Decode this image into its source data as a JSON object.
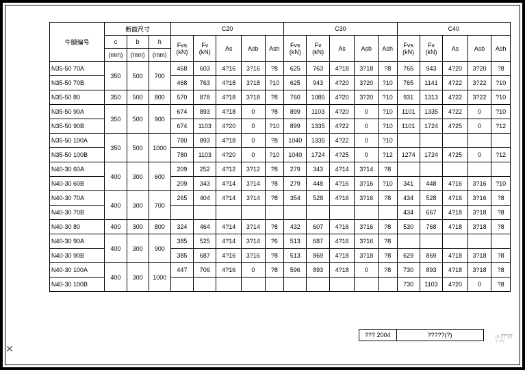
{
  "colors": {
    "border": "#000000",
    "bg": "#ffffff",
    "outer": "#c8c8c8"
  },
  "group_headers": {
    "dim": "断面尺寸",
    "c20": "C20",
    "c30": "C30",
    "c40": "C40"
  },
  "headers": {
    "id": "牛腿编号",
    "c": "c",
    "b": "b",
    "h": "h",
    "fvs": "Fvs",
    "fv": "Fv",
    "as": "As",
    "asb": "Asb",
    "ash": "Ash"
  },
  "units": {
    "mm": "(mm)",
    "kn": "(kN)"
  },
  "dim_groups": [
    {
      "span": 2,
      "c": "350",
      "b": "500",
      "h": "700"
    },
    {
      "span": 1,
      "c": "350",
      "b": "500",
      "h": "800"
    },
    {
      "span": 2,
      "c": "350",
      "b": "500",
      "h": "900"
    },
    {
      "span": 2,
      "c": "350",
      "b": "500",
      "h": "1000"
    },
    {
      "span": 2,
      "c": "400",
      "b": "300",
      "h": "600"
    },
    {
      "span": 2,
      "c": "400",
      "b": "300",
      "h": "700"
    },
    {
      "span": 1,
      "c": "400",
      "b": "300",
      "h": "800"
    },
    {
      "span": 2,
      "c": "400",
      "b": "300",
      "h": "900"
    },
    {
      "span": 2,
      "c": "400",
      "b": "300",
      "h": "1000"
    }
  ],
  "rows": [
    {
      "id": "N35-50  70A",
      "g": 0,
      "c20": [
        "468",
        "603",
        "4?16",
        "3?16",
        "?8"
      ],
      "c30": [
        "625",
        "763",
        "4?18",
        "3?18",
        "?8"
      ],
      "c40": [
        "765",
        "943",
        "4?20",
        "3?20",
        "?8"
      ]
    },
    {
      "id": "N35-50  70B",
      "g": 0,
      "c20": [
        "468",
        "763",
        "4?18",
        "3?18",
        "?10"
      ],
      "c30": [
        "625",
        "943",
        "4?20",
        "3?20",
        "?10"
      ],
      "c40": [
        "765",
        "1141",
        "4?22",
        "3?22",
        "?10"
      ]
    },
    {
      "id": "N35-50  80",
      "g": 1,
      "c20": [
        "570",
        "878",
        "4?18",
        "3?18",
        "?8"
      ],
      "c30": [
        "760",
        "1085",
        "4?20",
        "3?20",
        "?10"
      ],
      "c40": [
        "931",
        "1313",
        "4?22",
        "3?22",
        "?10"
      ]
    },
    {
      "id": "N35-50  90A",
      "g": 2,
      "c20": [
        "674",
        "893",
        "4?18",
        "0",
        "?8"
      ],
      "c30": [
        "899",
        "1103",
        "4?20",
        "0",
        "?10"
      ],
      "c40": [
        "1101",
        "1335",
        "4?22",
        "0",
        "?10"
      ]
    },
    {
      "id": "N35-50  90B",
      "g": 2,
      "c20": [
        "674",
        "1103",
        "4?20",
        "0",
        "?10"
      ],
      "c30": [
        "899",
        "1335",
        "4?22",
        "0",
        "?10"
      ],
      "c40": [
        "1101",
        "1724",
        "4?25",
        "0",
        "?12"
      ]
    },
    {
      "id": "N35-50  100A",
      "g": 3,
      "c20": [
        "780",
        "893",
        "4?18",
        "0",
        "?8"
      ],
      "c30": [
        "1040",
        "1335",
        "4?22",
        "0",
        "?10"
      ],
      "c40": [
        "",
        "",
        "",
        "",
        ""
      ]
    },
    {
      "id": "N35-50  100B",
      "g": 3,
      "c20": [
        "780",
        "1103",
        "4?20",
        "0",
        "?10"
      ],
      "c30": [
        "1040",
        "1724",
        "4?25",
        "0",
        "?12"
      ],
      "c40": [
        "1274",
        "1724",
        "4?25",
        "0",
        "?12"
      ]
    },
    {
      "id": "N40-30  60A",
      "g": 4,
      "c20": [
        "209",
        "252",
        "4?12",
        "3?12",
        "?8"
      ],
      "c30": [
        "279",
        "343",
        "4?14",
        "3?14",
        "?8"
      ],
      "c40": [
        "",
        "",
        "",
        "",
        ""
      ]
    },
    {
      "id": "N40-30  60B",
      "g": 4,
      "c20": [
        "209",
        "343",
        "4?14",
        "3?14",
        "?8"
      ],
      "c30": [
        "279",
        "448",
        "4?16",
        "3?16",
        "?10"
      ],
      "c40": [
        "341",
        "448",
        "4?16",
        "3?16",
        "?10"
      ]
    },
    {
      "id": "N40-30  70A",
      "g": 5,
      "c20": [
        "265",
        "404",
        "4?14",
        "3?14",
        "?8"
      ],
      "c30": [
        "354",
        "528",
        "4?16",
        "3?16",
        "?8"
      ],
      "c40": [
        "434",
        "528",
        "4?16",
        "3?16",
        "?8"
      ]
    },
    {
      "id": "N40-30  70B",
      "g": 5,
      "c20": [
        "",
        "",
        "",
        "",
        ""
      ],
      "c30": [
        "",
        "",
        "",
        "",
        ""
      ],
      "c40": [
        "434",
        "667",
        "4?18",
        "3?18",
        "?8"
      ]
    },
    {
      "id": "N40-30  80",
      "g": 6,
      "c20": [
        "324",
        "464",
        "4?14",
        "3?14",
        "?8"
      ],
      "c30": [
        "432",
        "607",
        "4?16",
        "3?16",
        "?8"
      ],
      "c40": [
        "530",
        "768",
        "4?18",
        "3?18",
        "?8"
      ]
    },
    {
      "id": "N40-30  90A",
      "g": 7,
      "c20": [
        "385",
        "525",
        "4?14",
        "3?14",
        "?6"
      ],
      "c30": [
        "513",
        "687",
        "4?16",
        "3?16",
        "?8"
      ],
      "c40": [
        "",
        "",
        "",
        "",
        ""
      ]
    },
    {
      "id": "N40-30  90B",
      "g": 7,
      "c20": [
        "385",
        "687",
        "4?16",
        "3?16",
        "?8"
      ],
      "c30": [
        "513",
        "869",
        "4?18",
        "3?18",
        "?8"
      ],
      "c40": [
        "629",
        "869",
        "4?18",
        "3?18",
        "?8"
      ]
    },
    {
      "id": "N40-30  100A",
      "g": 8,
      "c20": [
        "447",
        "706",
        "4?16",
        "0",
        "?8"
      ],
      "c30": [
        "596",
        "893",
        "4?18",
        "0",
        "?8"
      ],
      "c40": [
        "730",
        "893",
        "4?18",
        "3?18",
        "?8"
      ]
    },
    {
      "id": "N40-30  100B",
      "g": 8,
      "c20": [
        "",
        "",
        "",
        "",
        ""
      ],
      "c30": [
        "",
        "",
        "",
        "",
        ""
      ],
      "c40": [
        "730",
        "1103",
        "4?20",
        "0",
        "?8"
      ]
    }
  ],
  "footer": {
    "year": "???\n2004",
    "title": "?????(?)"
  },
  "col_widths": {
    "id": 70,
    "dim": 28,
    "fvs": 29,
    "fv": 29,
    "as": 32,
    "asb": 30,
    "ash": 24
  }
}
